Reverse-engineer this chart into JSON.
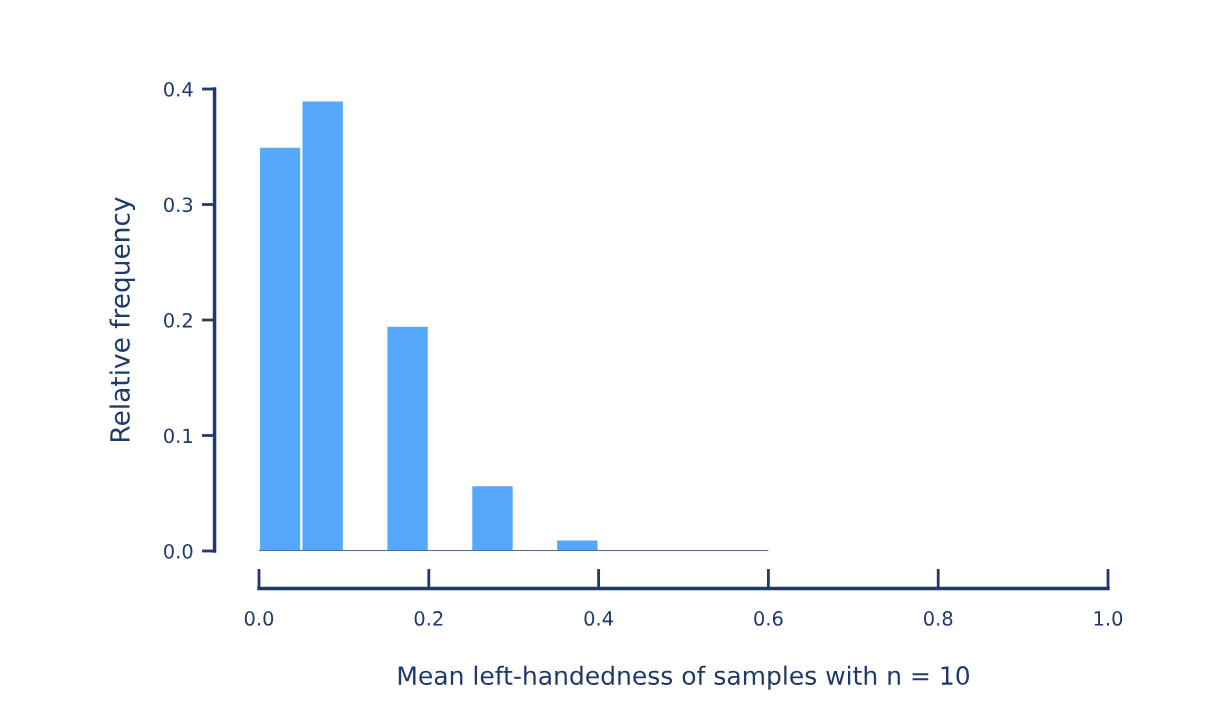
{
  "chart_data": {
    "type": "histogram",
    "xlabel": "Mean left-handedness of samples with n = 10",
    "ylabel": "Relative frequency",
    "bins": [
      0,
      0.05,
      0.1,
      0.15,
      0.2,
      0.25,
      0.3,
      0.35,
      0.4,
      0.45,
      0.5,
      0.55,
      0.6
    ],
    "values": [
      0.35,
      0.39,
      0,
      0.195,
      0,
      0.057,
      0,
      0.01,
      0,
      0,
      0,
      0
    ],
    "color": "#55a8fb",
    "xlim": [
      0,
      1
    ],
    "xticks": [
      {
        "value": 0,
        "label": "0.0"
      },
      {
        "value": 0.2,
        "label": "0.2"
      },
      {
        "value": 0.4,
        "label": "0.4"
      },
      {
        "value": 0.6,
        "label": "0.6"
      },
      {
        "value": 0.8,
        "label": "0.8"
      },
      {
        "value": 1,
        "label": "1.0"
      }
    ],
    "ylim": [
      0,
      0.4
    ],
    "yticks": [
      {
        "value": 0,
        "label": "0.0"
      },
      {
        "value": 0.1,
        "label": "0.1"
      },
      {
        "value": 0.2,
        "label": "0.2"
      },
      {
        "value": 0.3,
        "label": "0.3"
      },
      {
        "value": 0.4,
        "label": "0.4"
      }
    ],
    "grid": false
  }
}
